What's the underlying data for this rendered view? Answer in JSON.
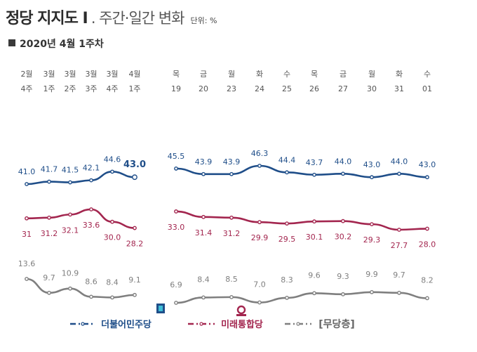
{
  "title": {
    "main": "정당 지지도 Ⅰ",
    "sub": ". 주간·일간 변화",
    "unit": "단위: %"
  },
  "period_label": "2020년 4월 1주차",
  "colors": {
    "democratic": "#1f4e89",
    "united_future": "#a3264f",
    "independent": "#7f7f7f"
  },
  "chart_data": {
    "type": "line",
    "panels": [
      {
        "name": "weekly",
        "categories": [
          [
            "2월",
            "4주"
          ],
          [
            "3월",
            "1주"
          ],
          [
            "3월",
            "2주"
          ],
          [
            "3월",
            "3주"
          ],
          [
            "3월",
            "4주"
          ],
          [
            "4월",
            "1주"
          ]
        ],
        "series": [
          {
            "name": "더불어민주당",
            "values": [
              41.0,
              41.7,
              41.5,
              42.1,
              44.6,
              43.0
            ]
          },
          {
            "name": "미래통합당",
            "values": [
              31,
              31.2,
              32.1,
              33.6,
              30.0,
              28.2
            ]
          },
          {
            "name": "[무당층]",
            "values": [
              13.6,
              9.7,
              10.9,
              8.6,
              8.4,
              9.1
            ]
          }
        ],
        "value_labels": [
          [
            "41.0",
            "41.7",
            "41.5",
            "42.1",
            "44.6",
            "43.0"
          ],
          [
            "31",
            "31.2",
            "32.1",
            "33.6",
            "30.0",
            "28.2"
          ],
          [
            "13.6",
            "9.7",
            "10.9",
            "8.6",
            "8.4",
            "9.1"
          ]
        ]
      },
      {
        "name": "daily",
        "categories": [
          [
            "목",
            "19"
          ],
          [
            "금",
            "20"
          ],
          [
            "월",
            "23"
          ],
          [
            "화",
            "24"
          ],
          [
            "수",
            "25"
          ],
          [
            "목",
            "26"
          ],
          [
            "금",
            "27"
          ],
          [
            "월",
            "30"
          ],
          [
            "화",
            "31"
          ],
          [
            "수",
            "01"
          ]
        ],
        "series": [
          {
            "name": "더불어민주당",
            "values": [
              45.5,
              43.9,
              43.9,
              46.3,
              44.4,
              43.7,
              44.0,
              43.0,
              44.0,
              43.0
            ]
          },
          {
            "name": "미래통합당",
            "values": [
              33.0,
              31.4,
              31.2,
              29.9,
              29.5,
              30.1,
              30.2,
              29.3,
              27.7,
              28.0
            ]
          },
          {
            "name": "[무당층]",
            "values": [
              6.9,
              8.4,
              8.5,
              7.0,
              8.3,
              9.6,
              9.3,
              9.9,
              9.7,
              8.2
            ]
          }
        ],
        "value_labels": [
          [
            "45.5",
            "43.9",
            "43.9",
            "46.3",
            "44.4",
            "43.7",
            "44.0",
            "43.0",
            "44.0",
            "43.0"
          ],
          [
            "33.0",
            "31.4",
            "31.2",
            "29.9",
            "29.5",
            "30.1",
            "30.2",
            "29.3",
            "27.7",
            "28.0"
          ],
          [
            "6.9",
            "8.4",
            "8.5",
            "7.0",
            "8.3",
            "9.6",
            "9.3",
            "9.9",
            "9.7",
            "8.2"
          ]
        ]
      }
    ],
    "legend": [
      {
        "name": "더불어민주당",
        "icon": "democratic-party-logo-icon"
      },
      {
        "name": "미래통합당",
        "icon": "united-future-party-logo-icon"
      },
      {
        "name": "[무당층]",
        "icon": ""
      }
    ],
    "legend_position": "bottom",
    "grid": false
  }
}
